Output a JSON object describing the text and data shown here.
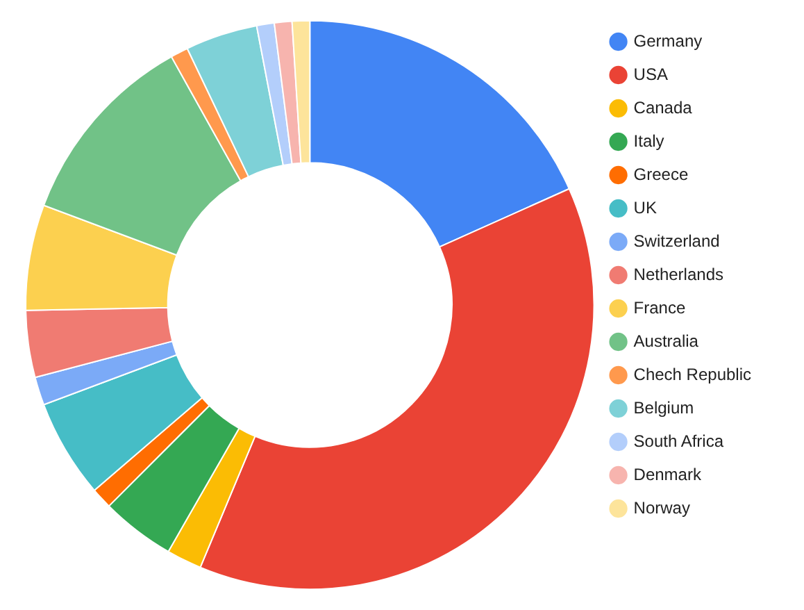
{
  "chart_data": {
    "type": "donut",
    "categories": [
      "Germany",
      "USA",
      "Canada",
      "Italy",
      "Greece",
      "UK",
      "Switzerland",
      "Netherlands",
      "France",
      "Australia",
      "Chech Republic",
      "Belgium",
      "South Africa",
      "Denmark",
      "Norway"
    ],
    "values": [
      18.3,
      38,
      2,
      4.2,
      1.2,
      5.6,
      1.6,
      3.8,
      6,
      11.2,
      1,
      4.1,
      1,
      1,
      1
    ],
    "colors": [
      "#4285f4",
      "#ea4335",
      "#fbbc04",
      "#34a853",
      "#ff6d01",
      "#46bdc6",
      "#7baaf7",
      "#f07b72",
      "#fcd04f",
      "#71c287",
      "#ff994d",
      "#7ed1d7",
      "#b3cefb",
      "#f7b4ae",
      "#fde49b"
    ],
    "legend": "right"
  }
}
